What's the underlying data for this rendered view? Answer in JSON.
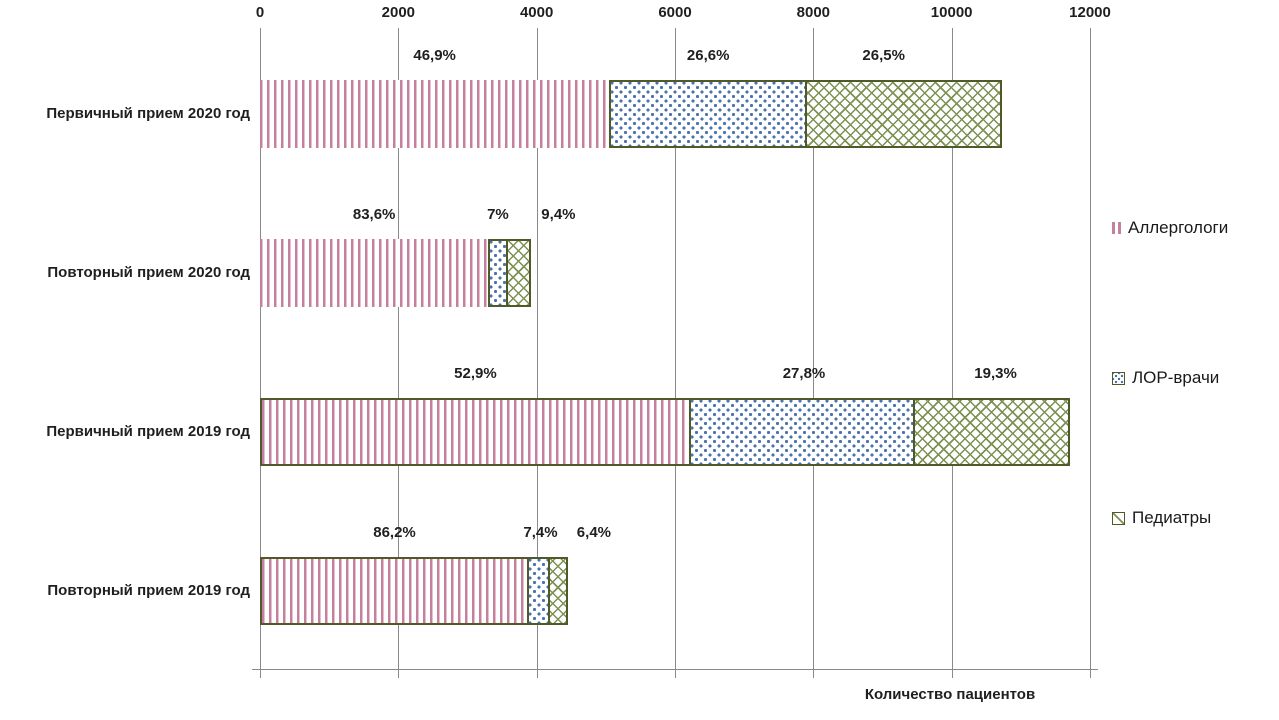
{
  "chart_data": {
    "type": "bar",
    "stacked": true,
    "orientation": "horizontal",
    "title": "",
    "xlabel": "Количество пациентов",
    "ylabel": "",
    "xlim": [
      0,
      12000
    ],
    "x_ticks": [
      0,
      2000,
      4000,
      6000,
      8000,
      10000,
      12000
    ],
    "grid": true,
    "legend_position": "right",
    "categories": [
      "Первичный прием 2020 год",
      "Повторный прием 2020 год",
      "Первичный прием 2019 год",
      "Повторный прием 2019 год"
    ],
    "series": [
      {
        "name": "Аллергологи",
        "color": "#c4809d",
        "pattern": "pink-vertical-stripes",
        "values": [
          5050,
          3300,
          6230,
          3890
        ],
        "percent_labels": [
          "46,9%",
          "83,6%",
          "52,9%",
          "86,2%"
        ]
      },
      {
        "name": "ЛОР-врачи",
        "color": "#4a73ae",
        "pattern": "blue-dots",
        "values": [
          2860,
          280,
          3270,
          330
        ],
        "percent_labels": [
          "26,6%",
          "7%",
          "27,8%",
          "7,4%"
        ]
      },
      {
        "name": "Педиатры",
        "color": "#7d9152",
        "pattern": "olive-diagonal-crosshatch",
        "values": [
          2850,
          370,
          2270,
          290
        ],
        "percent_labels": [
          "26,5%",
          "9,4%",
          "19,3%",
          "6,4%"
        ]
      }
    ]
  },
  "colors": {
    "bar_border": "#4f5a28",
    "gridline": "#8a8a8a",
    "text": "#1f1f1f"
  }
}
